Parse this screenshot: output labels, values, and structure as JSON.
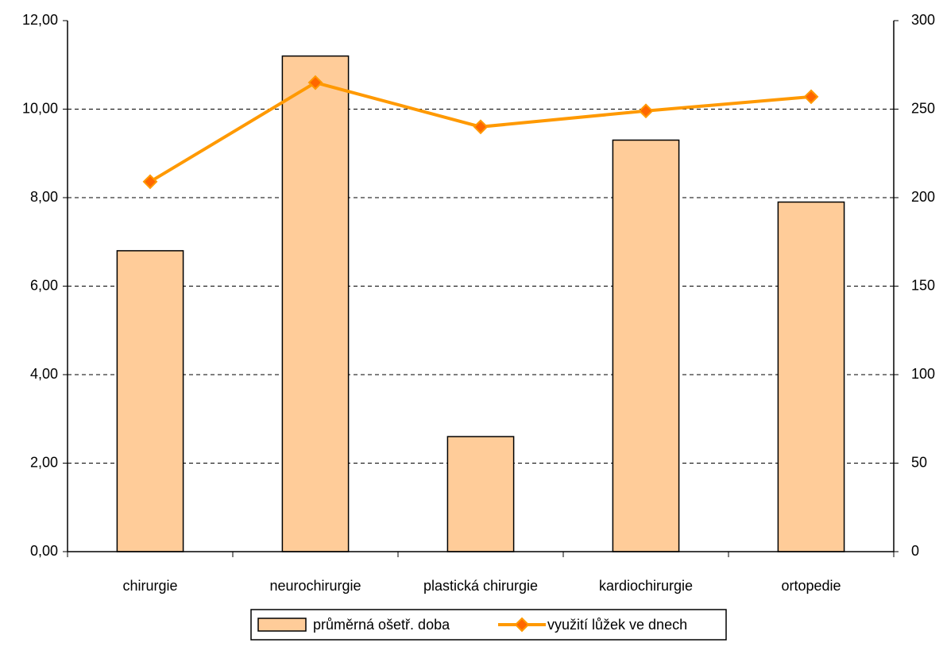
{
  "chart_data": {
    "type": "bar+line",
    "categories": [
      "chirurgie",
      "neurochirurgie",
      "plastická chirurgie",
      "kardiochirurgie",
      "ortopedie"
    ],
    "series": [
      {
        "name": "průměrná ošetř. doba",
        "type": "bar",
        "color": "#ffcc99",
        "values": [
          6.8,
          11.2,
          2.6,
          9.3,
          7.9
        ]
      },
      {
        "name": "využití lůžek ve dnech",
        "type": "line",
        "color": "#ff9900",
        "marker_color": "#ff6600",
        "axis": "y2",
        "values": [
          209,
          265,
          240,
          249,
          257
        ]
      }
    ],
    "ylim": [
      0,
      12
    ],
    "yticks": [
      {
        "value": 0,
        "label": "0,00"
      },
      {
        "value": 2,
        "label": "2,00"
      },
      {
        "value": 4,
        "label": "4,00"
      },
      {
        "value": 6,
        "label": "6,00"
      },
      {
        "value": 8,
        "label": "8,00"
      },
      {
        "value": 10,
        "label": "10,00"
      },
      {
        "value": 12,
        "label": "12,00"
      }
    ],
    "y2lim": [
      0,
      300
    ],
    "y2ticks": [
      0,
      50,
      100,
      150,
      200,
      250,
      300
    ],
    "grid": true,
    "legend": "bottom"
  }
}
